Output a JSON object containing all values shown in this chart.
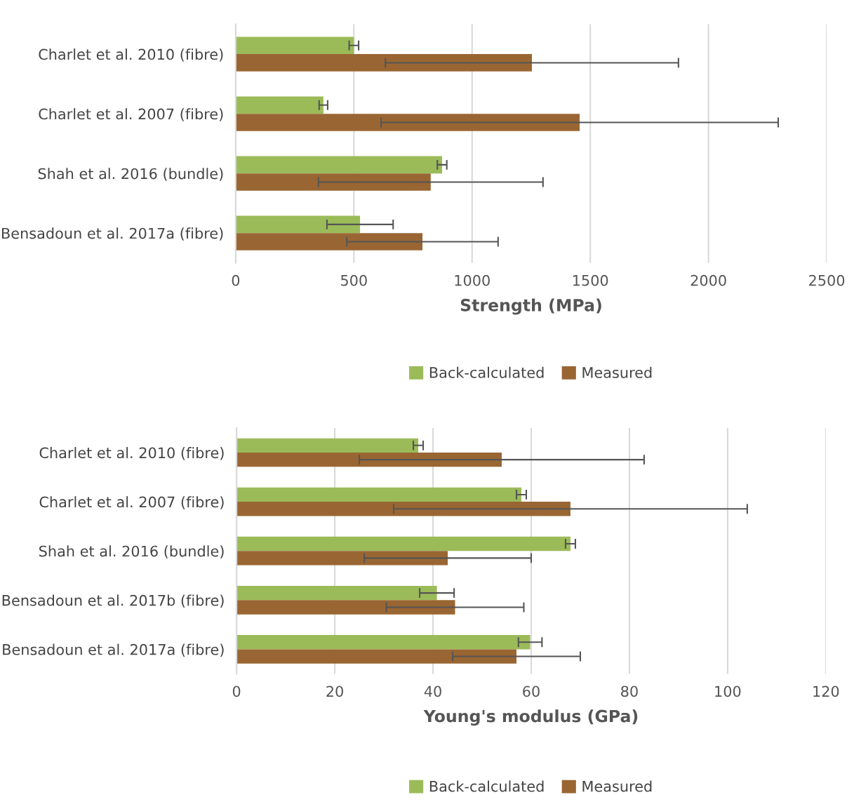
{
  "chart_data": [
    {
      "type": "bar",
      "orientation": "horizontal",
      "xlabel": "Strength (MPa)",
      "categories": [
        "Charlet et al. 2010 (fibre)",
        "Charlet et al. 2007 (fibre)",
        "Shah et al. 2016 (bundle)",
        "Bensadoun et al. 2017a (fibre)"
      ],
      "series": [
        {
          "name": "Back-calculated",
          "color": "#9bbb59",
          "values": [
            500,
            371,
            873,
            526
          ],
          "errors": [
            20,
            18,
            20,
            140
          ]
        },
        {
          "name": "Measured",
          "color": "#996633",
          "values": [
            1253,
            1455,
            825,
            790
          ],
          "errors": [
            620,
            840,
            475,
            320
          ]
        }
      ],
      "xlim": [
        0,
        2500
      ],
      "xticks": [
        0,
        500,
        1000,
        1500,
        2000,
        2500
      ],
      "grid": "x",
      "legend": "bottom"
    },
    {
      "type": "bar",
      "orientation": "horizontal",
      "xlabel": "Young's modulus (GPa)",
      "categories": [
        "Charlet et al. 2010 (fibre)",
        "Charlet et al. 2007 (fibre)",
        "Shah et al. 2016 (bundle)",
        "Bensadoun et al. 2017b (fibre)",
        "Bensadoun et al. 2017a (fibre)"
      ],
      "series": [
        {
          "name": "Back-calculated",
          "color": "#9bbb59",
          "values": [
            37,
            58,
            68,
            40.8,
            59.8
          ],
          "errors": [
            1,
            1,
            1,
            3.5,
            2.4
          ]
        },
        {
          "name": "Measured",
          "color": "#996633",
          "values": [
            54,
            68,
            43,
            44.5,
            57
          ],
          "errors": [
            29,
            36,
            17,
            14,
            13
          ]
        }
      ],
      "xlim": [
        0,
        120
      ],
      "xticks": [
        0,
        20,
        40,
        60,
        80,
        100,
        120
      ],
      "grid": "x",
      "legend": "bottom"
    }
  ]
}
